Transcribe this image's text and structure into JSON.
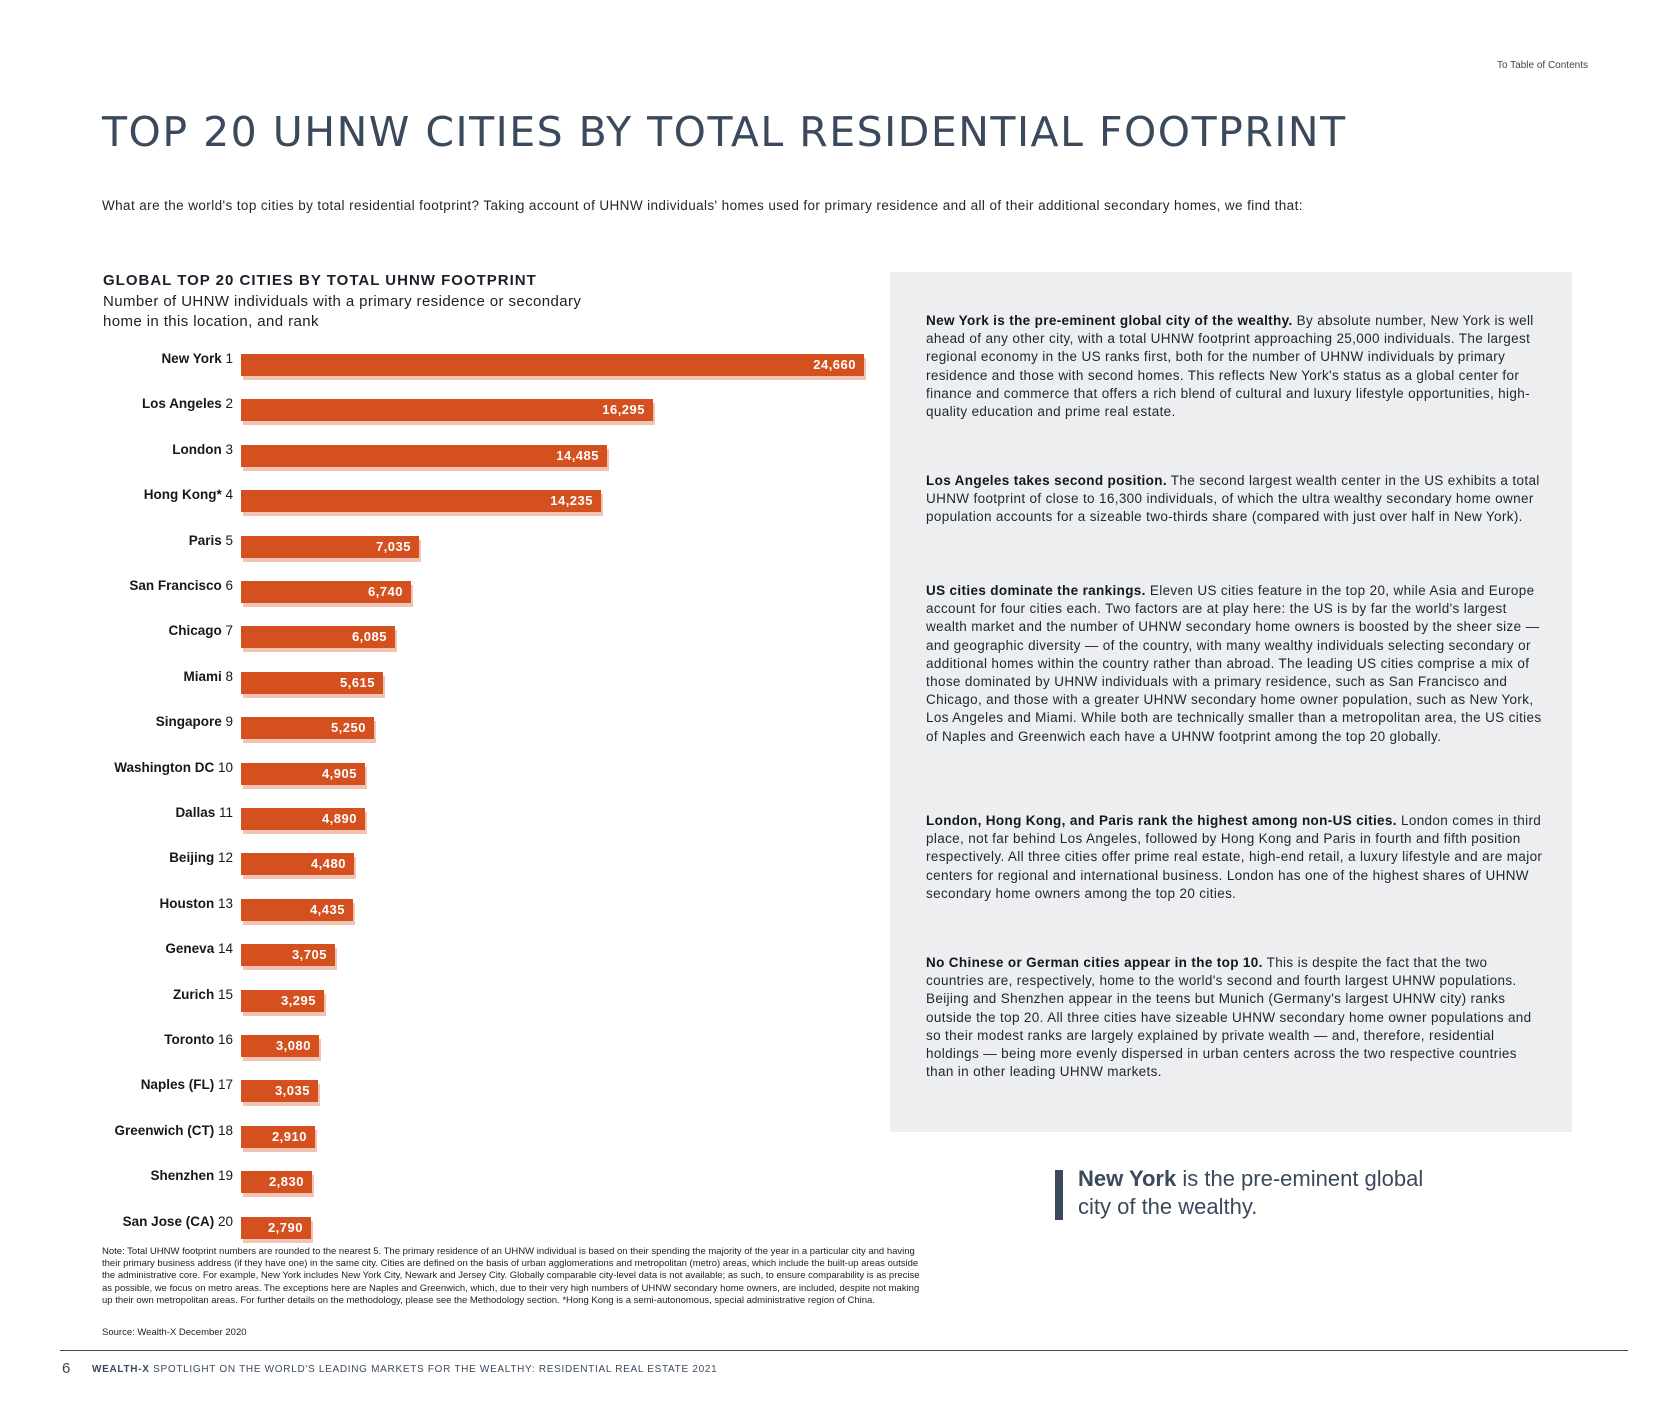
{
  "toc_link": "To Table of Contents",
  "title": "TOP 20 UHNW CITIES BY TOTAL RESIDENTIAL FOOTPRINT",
  "intro": "What are the world's top cities by total residential footprint? Taking account of UHNW individuals' homes used for primary residence and all of their additional secondary homes, we find that:",
  "chart_data": {
    "type": "bar",
    "orientation": "horizontal",
    "title": "GLOBAL TOP 20 CITIES BY TOTAL UHNW FOOTPRINT",
    "subtitle": "Number of UHNW individuals with a primary residence or secondary home in this location, and rank",
    "xlim": [
      0,
      24660
    ],
    "categories": [
      "New York",
      "Los Angeles",
      "London",
      "Hong Kong*",
      "Paris",
      "San Francisco",
      "Chicago",
      "Miami",
      "Singapore",
      "Washington DC",
      "Dallas",
      "Beijing",
      "Houston",
      "Geneva",
      "Zurich",
      "Toronto",
      "Naples (FL)",
      "Greenwich (CT)",
      "Shenzhen",
      "San Jose (CA)"
    ],
    "ranks": [
      "1",
      "2",
      "3",
      "4",
      "5",
      "6",
      "7",
      "8",
      "9",
      "10",
      "11",
      "12",
      "13",
      "14",
      "15",
      "16",
      "17",
      "18",
      "19",
      "20"
    ],
    "values": [
      24660,
      16295,
      14485,
      14235,
      7035,
      6740,
      6085,
      5615,
      5250,
      4905,
      4890,
      4480,
      4435,
      3705,
      3295,
      3080,
      3035,
      2910,
      2830,
      2790
    ],
    "value_labels": [
      "24,660",
      "16,295",
      "14,485",
      "14,235",
      "7,035",
      "6,740",
      "6,085",
      "5,615",
      "5,250",
      "4,905",
      "4,890",
      "4,480",
      "4,435",
      "3,705",
      "3,295",
      "3,080",
      "3,035",
      "2,910",
      "2,830",
      "2,790"
    ]
  },
  "note": "Note: Total UHNW footprint numbers are rounded to the nearest 5. The primary residence of an UHNW individual is based on their spending the majority of the year in a particular city and having their primary business address (if they have one) in the same city. Cities are defined on the basis of urban agglomerations and metropolitan (metro) areas, which include the built-up areas outside the administrative core. For example, New York includes New York City, Newark and Jersey City. Globally comparable city-level data is not available; as such, to ensure comparability is as precise as possible, we focus on metro areas. The exceptions here are Naples and Greenwich, which, due to their very high numbers of UHNW secondary home owners, are included, despite not making up their own metropolitan areas. For further details on the methodology, please see the Methodology section. *Hong Kong is a semi-autonomous, special administrative region of China.",
  "source": "Source: Wealth-X December 2020",
  "panel": {
    "paragraphs": [
      {
        "lead": "New York is the pre-eminent global city of the wealthy.",
        "body": " By absolute number, New York is well ahead of any other city, with a total UHNW footprint approaching 25,000 individuals. The largest regional economy in the US ranks first, both for the number of UHNW individuals by primary residence and those with second homes. This reflects New York's status as a global center for finance and commerce that offers a rich blend of cultural and luxury lifestyle opportunities, high-quality education and prime real estate."
      },
      {
        "lead": "Los Angeles takes second position.",
        "body": " The second largest wealth center in the US exhibits a total UHNW footprint of close to 16,300 individuals, of which the ultra wealthy secondary home owner population accounts for a sizeable two-thirds share (compared with just over half in New York)."
      },
      {
        "lead": "US cities dominate the rankings.",
        "body": " Eleven US cities feature in the top 20, while Asia and Europe account for four cities each. Two factors are at play here: the US is by far the world's largest wealth market and the number of UHNW secondary home owners is boosted by the sheer size — and geographic diversity — of the country, with many wealthy individuals selecting secondary or additional homes within the country rather than abroad. The leading US cities comprise a mix of those dominated by UHNW individuals with a primary residence, such as San Francisco and Chicago, and those with a greater UHNW secondary home owner population, such as New York, Los Angeles and Miami. While both are technically smaller than a metropolitan area, the US cities of Naples and Greenwich each have a UHNW footprint among the top 20 globally."
      },
      {
        "lead": "London, Hong Kong, and Paris rank the highest among non-US cities.",
        "body": " London comes in third place, not far behind Los Angeles, followed by Hong Kong and Paris in fourth and fifth position respectively. All three cities offer prime real estate, high-end retail, a luxury lifestyle and are major centers for regional and international business. London has one of the highest shares of UHNW secondary home owners among the top 20 cities."
      },
      {
        "lead": "No Chinese or German cities appear in the top 10.",
        "body": " This is despite the fact that the two countries are, respectively, home to the world's second and fourth largest UHNW populations. Beijing and Shenzhen appear in the teens but Munich (Germany's largest UHNW city) ranks outside the top 20. All three cities have sizeable UHNW secondary home owner populations and so their modest ranks are largely explained by private wealth — and, therefore, residential holdings — being more evenly dispersed in urban centers across the two respective countries than in other leading UHNW markets."
      }
    ]
  },
  "quote": {
    "lead": "New York",
    "rest": " is the pre-eminent global city of the wealthy."
  },
  "footer": {
    "page": "6",
    "brand": "WEALTH-X",
    "text": " SPOTLIGHT ON THE WORLD'S LEADING MARKETS FOR THE WEALTHY: RESIDENTIAL REAL ESTATE 2021"
  },
  "colors": {
    "bar": "#d4511f",
    "bar_shadow": "#f2c2b2",
    "heading": "#3a4a5c",
    "panel_bg": "#edeef0"
  }
}
